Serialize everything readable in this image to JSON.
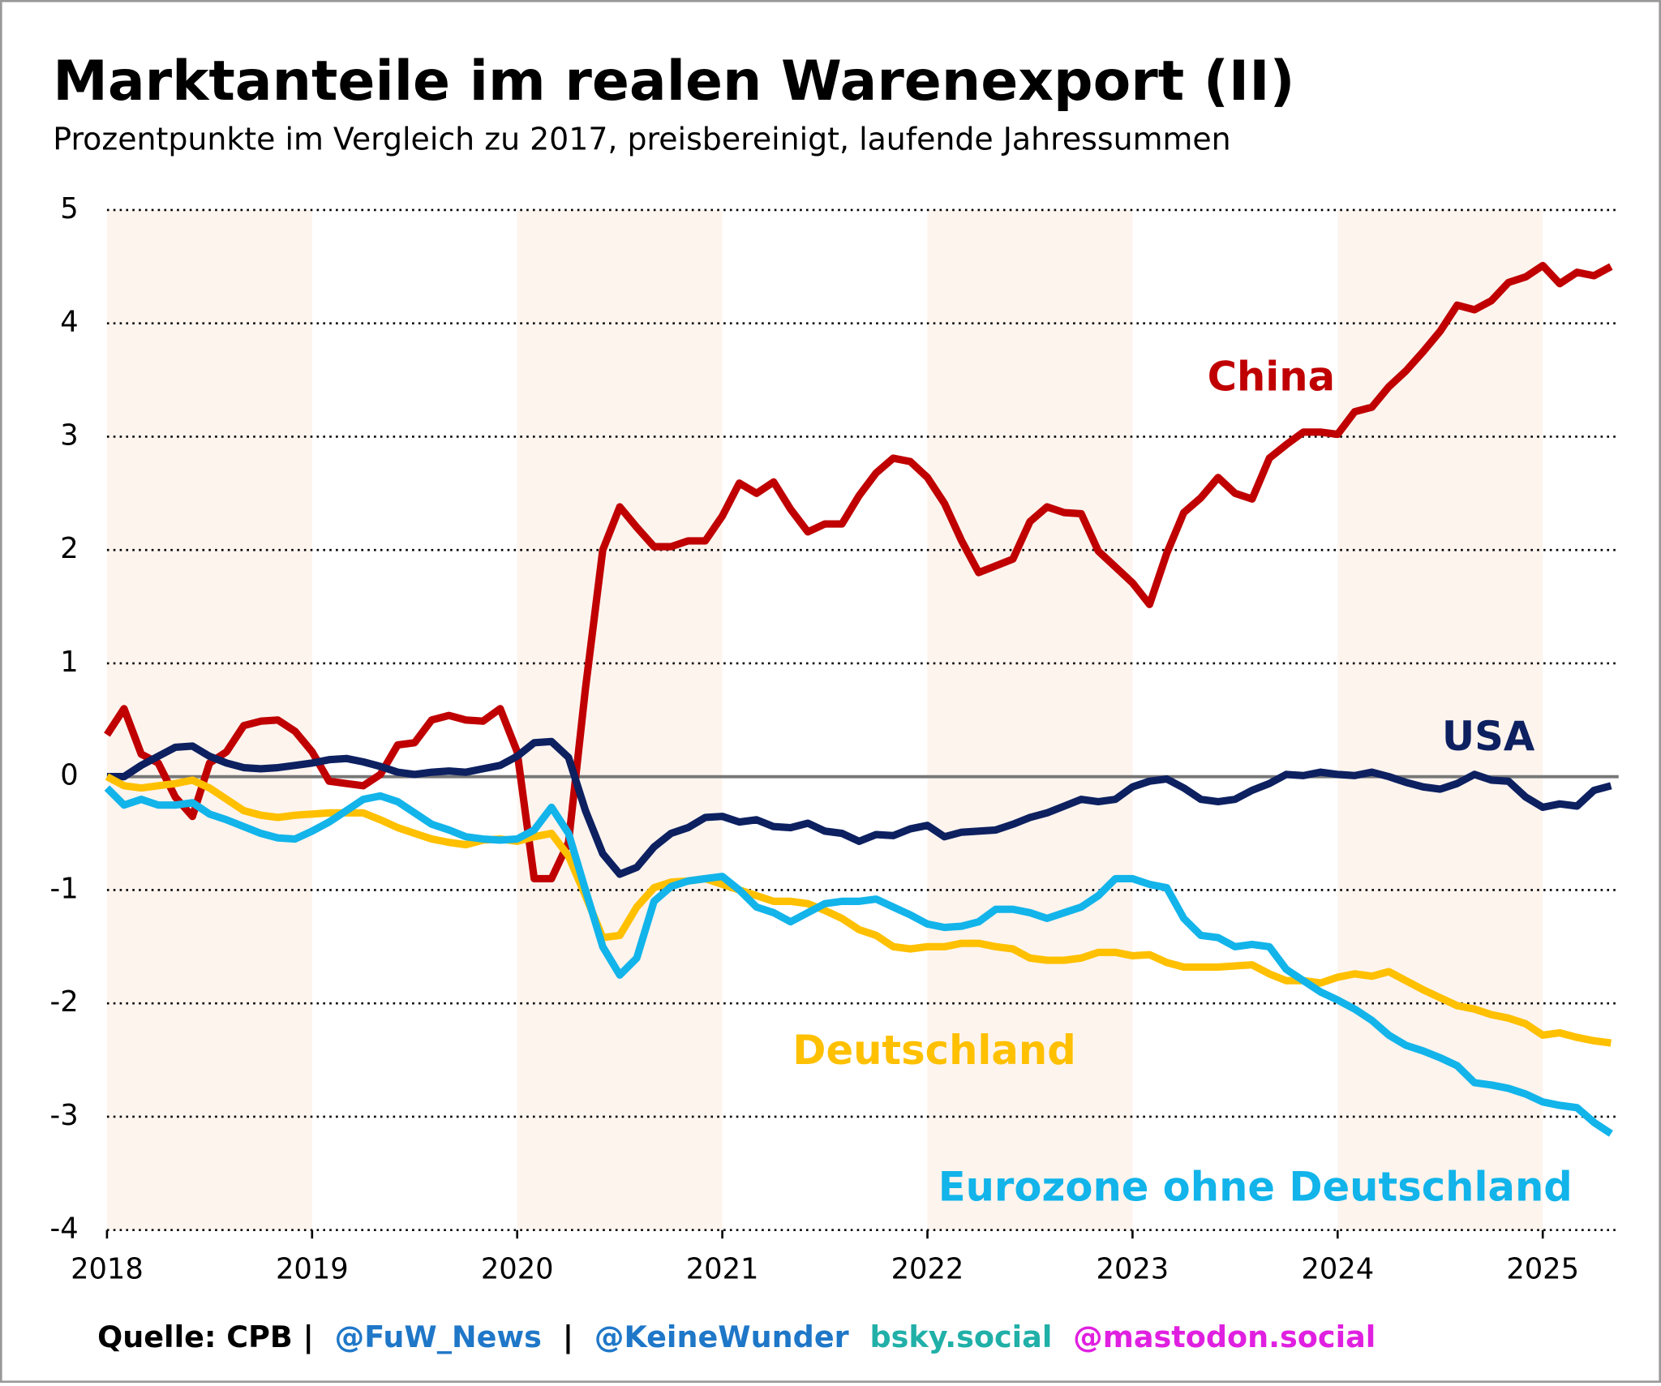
{
  "chart_data": {
    "type": "line",
    "title": "Marktanteile im realen Warenexport (II)",
    "subtitle": "Prozentpunkte im Vergleich zu 2017, preisbereinigt, laufende Jahressummen",
    "footer": [
      "Quelle: CPB |",
      "@FuW_News",
      "|",
      "@KeineWunder",
      "bsky.social",
      "@mastodon.social"
    ],
    "x": [
      2018,
      2018.083,
      2018.167,
      2018.25,
      2018.333,
      2018.417,
      2018.5,
      2018.583,
      2018.667,
      2018.75,
      2018.833,
      2018.917,
      2019,
      2019.083,
      2019.167,
      2019.25,
      2019.333,
      2019.417,
      2019.5,
      2019.583,
      2019.667,
      2019.75,
      2019.833,
      2019.917,
      2020,
      2020.083,
      2020.167,
      2020.25,
      2020.333,
      2020.417,
      2020.5,
      2020.583,
      2020.667,
      2020.75,
      2020.833,
      2020.917,
      2021,
      2021.083,
      2021.167,
      2021.25,
      2021.333,
      2021.417,
      2021.5,
      2021.583,
      2021.667,
      2021.75,
      2021.833,
      2021.917,
      2022,
      2022.083,
      2022.167,
      2022.25,
      2022.333,
      2022.417,
      2022.5,
      2022.583,
      2022.667,
      2022.75,
      2022.833,
      2022.917,
      2023,
      2023.083,
      2023.167,
      2023.25,
      2023.333,
      2023.417,
      2023.5,
      2023.583,
      2023.667,
      2023.75,
      2023.833,
      2023.917,
      2024,
      2024.083,
      2024.167,
      2024.25,
      2024.333,
      2024.417,
      2024.5,
      2024.583,
      2024.667,
      2024.75,
      2024.833,
      2024.917,
      2025,
      2025.083,
      2025.167,
      2025.25,
      2025.333
    ],
    "series": [
      {
        "name": "China",
        "color": "#c00000",
        "values": [
          0.37,
          0.6,
          0.2,
          0.12,
          -0.18,
          -0.35,
          0.12,
          0.22,
          0.45,
          0.49,
          0.5,
          0.4,
          0.22,
          -0.04,
          -0.06,
          -0.08,
          0.02,
          0.28,
          0.3,
          0.5,
          0.54,
          0.5,
          0.49,
          0.6,
          0.22,
          -0.9,
          -0.9,
          -0.58,
          0.78,
          2.0,
          2.38,
          2.2,
          2.03,
          2.03,
          2.08,
          2.08,
          2.3,
          2.59,
          2.5,
          2.6,
          2.36,
          2.16,
          2.23,
          2.23,
          2.48,
          2.68,
          2.81,
          2.78,
          2.64,
          2.41,
          2.08,
          1.8,
          1.86,
          1.92,
          2.25,
          2.38,
          2.33,
          2.32,
          1.99,
          1.85,
          1.71,
          1.52,
          1.97,
          2.33,
          2.46,
          2.64,
          2.5,
          2.45,
          2.81,
          2.93,
          3.04,
          3.04,
          3.02,
          3.22,
          3.26,
          3.44,
          3.58,
          3.75,
          3.93,
          4.16,
          4.12,
          4.2,
          4.36,
          4.41,
          4.51,
          4.35,
          4.45,
          4.42,
          4.5
        ]
      },
      {
        "name": "USA",
        "color": "#0d2060",
        "values": [
          0,
          0,
          0.1,
          0.18,
          0.26,
          0.27,
          0.18,
          0.12,
          0.08,
          0.07,
          0.08,
          0.1,
          0.12,
          0.15,
          0.16,
          0.13,
          0.09,
          0.04,
          0.02,
          0.04,
          0.05,
          0.04,
          0.07,
          0.1,
          0.18,
          0.3,
          0.31,
          0.17,
          -0.3,
          -0.68,
          -0.86,
          -0.8,
          -0.62,
          -0.5,
          -0.45,
          -0.36,
          -0.35,
          -0.4,
          -0.38,
          -0.44,
          -0.45,
          -0.41,
          -0.48,
          -0.5,
          -0.57,
          -0.51,
          -0.52,
          -0.46,
          -0.43,
          -0.53,
          -0.49,
          -0.48,
          -0.47,
          -0.42,
          -0.36,
          -0.32,
          -0.26,
          -0.2,
          -0.22,
          -0.2,
          -0.09,
          -0.04,
          -0.02,
          -0.1,
          -0.2,
          -0.22,
          -0.2,
          -0.12,
          -0.06,
          0.02,
          0.01,
          0.04,
          0.02,
          0.01,
          0.04,
          0,
          -0.05,
          -0.09,
          -0.11,
          -0.06,
          0.02,
          -0.03,
          -0.04,
          -0.18,
          -0.27,
          -0.24,
          -0.26,
          -0.12,
          -0.08
        ]
      },
      {
        "name": "Deutschland",
        "color": "#ffc000",
        "values": [
          0,
          -0.08,
          -0.1,
          -0.08,
          -0.06,
          -0.03,
          -0.1,
          -0.2,
          -0.3,
          -0.34,
          -0.36,
          -0.34,
          -0.33,
          -0.32,
          -0.32,
          -0.32,
          -0.38,
          -0.45,
          -0.5,
          -0.55,
          -0.58,
          -0.6,
          -0.56,
          -0.55,
          -0.57,
          -0.53,
          -0.5,
          -0.7,
          -1.05,
          -1.42,
          -1.4,
          -1.15,
          -0.98,
          -0.93,
          -0.92,
          -0.9,
          -0.95,
          -1.0,
          -1.05,
          -1.1,
          -1.1,
          -1.12,
          -1.18,
          -1.25,
          -1.35,
          -1.4,
          -1.5,
          -1.52,
          -1.5,
          -1.5,
          -1.47,
          -1.47,
          -1.5,
          -1.52,
          -1.6,
          -1.62,
          -1.62,
          -1.6,
          -1.55,
          -1.55,
          -1.58,
          -1.57,
          -1.64,
          -1.68,
          -1.68,
          -1.68,
          -1.67,
          -1.66,
          -1.74,
          -1.8,
          -1.8,
          -1.82,
          -1.77,
          -1.74,
          -1.76,
          -1.72,
          -1.8,
          -1.88,
          -1.95,
          -2.02,
          -2.05,
          -2.1,
          -2.13,
          -2.18,
          -2.28,
          -2.26,
          -2.3,
          -2.33,
          -2.35
        ]
      },
      {
        "name": "Eurozone ohne Deutschland",
        "color": "#12b4ea",
        "values": [
          -0.1,
          -0.25,
          -0.2,
          -0.25,
          -0.25,
          -0.23,
          -0.33,
          -0.38,
          -0.44,
          -0.5,
          -0.54,
          -0.55,
          -0.48,
          -0.4,
          -0.3,
          -0.2,
          -0.17,
          -0.22,
          -0.32,
          -0.42,
          -0.47,
          -0.53,
          -0.55,
          -0.56,
          -0.55,
          -0.47,
          -0.27,
          -0.5,
          -1.0,
          -1.5,
          -1.75,
          -1.6,
          -1.1,
          -0.97,
          -0.92,
          -0.9,
          -0.88,
          -1.0,
          -1.15,
          -1.2,
          -1.28,
          -1.2,
          -1.12,
          -1.1,
          -1.1,
          -1.08,
          -1.15,
          -1.22,
          -1.3,
          -1.33,
          -1.32,
          -1.28,
          -1.17,
          -1.17,
          -1.2,
          -1.25,
          -1.2,
          -1.15,
          -1.05,
          -0.9,
          -0.9,
          -0.95,
          -0.98,
          -1.25,
          -1.4,
          -1.42,
          -1.5,
          -1.48,
          -1.5,
          -1.7,
          -1.8,
          -1.9,
          -1.97,
          -2.05,
          -2.15,
          -2.28,
          -2.37,
          -2.42,
          -2.48,
          -2.55,
          -2.7,
          -2.72,
          -2.75,
          -2.8,
          -2.87,
          -2.9,
          -2.92,
          -3.05,
          -3.15
        ]
      }
    ],
    "xlim": [
      2018,
      2025.37
    ],
    "xticks": [
      2018,
      2019,
      2020,
      2021,
      2022,
      2023,
      2024,
      2025
    ],
    "ylim": [
      -4,
      5
    ],
    "yticks": [
      -4,
      -3,
      -2,
      -1,
      0,
      1,
      2,
      3,
      4,
      5
    ],
    "grid": true
  }
}
